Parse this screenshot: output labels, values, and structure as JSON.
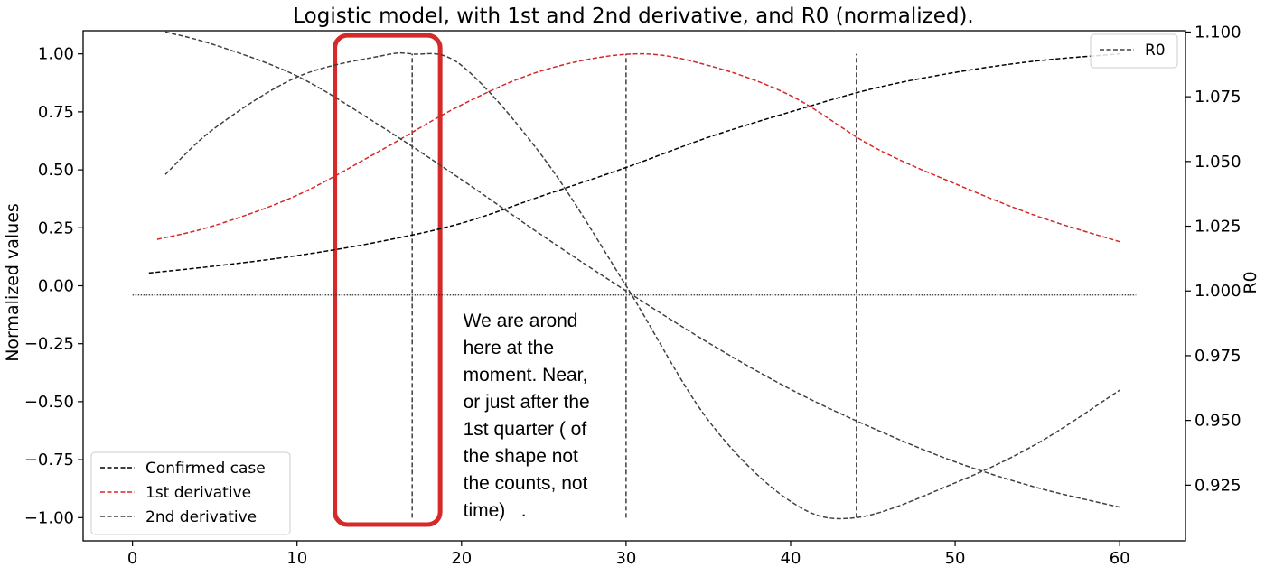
{
  "chart_data": {
    "type": "line",
    "title": "Logistic model, with 1st and 2nd derivative, and R0 (normalized).",
    "xlabel": "",
    "ylabel": "Normalized values",
    "y2label": "R0",
    "xlim": [
      -3,
      64
    ],
    "ylim": [
      -1.1,
      1.1
    ],
    "y2lim": [
      0.9035,
      1.1005
    ],
    "xticks": [
      "0",
      "10",
      "20",
      "30",
      "40",
      "50",
      "60"
    ],
    "yticks": [
      "1.00",
      "0.75",
      "0.50",
      "0.25",
      "0.00",
      "−0.25",
      "−0.50",
      "−0.75",
      "−1.00"
    ],
    "y2ticks": [
      "1.100",
      "1.075",
      "1.050",
      "1.025",
      "1.000",
      "0.975",
      "0.950",
      "0.925"
    ],
    "grid": false,
    "legend_left": {
      "placement": "lower-left",
      "entries": [
        {
          "label": "Confirmed case",
          "color": "#000000"
        },
        {
          "label": "1st derivative",
          "color": "#d62728"
        },
        {
          "label": "2nd derivative",
          "color": "#404040"
        }
      ]
    },
    "legend_right": {
      "placement": "upper-right",
      "entries": [
        {
          "label": "R0",
          "color": "#404040"
        }
      ]
    },
    "series": [
      {
        "key": "confirmed",
        "color": "#000000",
        "axis": "left",
        "x": [
          1,
          5,
          10,
          15,
          20,
          25,
          30,
          35,
          40,
          45,
          50,
          55,
          60
        ],
        "y": [
          0.055,
          0.085,
          0.13,
          0.19,
          0.27,
          0.39,
          0.51,
          0.64,
          0.75,
          0.85,
          0.92,
          0.97,
          1.0
        ]
      },
      {
        "key": "d1",
        "color": "#d62728",
        "axis": "left",
        "x": [
          1.5,
          5,
          10,
          15,
          20,
          25,
          30.5,
          35,
          40,
          45,
          50,
          55,
          60
        ],
        "y": [
          0.2,
          0.26,
          0.39,
          0.58,
          0.78,
          0.93,
          1.0,
          0.95,
          0.82,
          0.6,
          0.44,
          0.3,
          0.19
        ]
      },
      {
        "key": "d2",
        "color": "#404040",
        "axis": "left",
        "x": [
          2,
          5,
          10,
          15,
          17,
          20,
          25,
          30,
          35,
          40,
          44,
          50,
          55,
          60
        ],
        "y": [
          0.48,
          0.68,
          0.9,
          0.99,
          1.0,
          0.95,
          0.55,
          0.0,
          -0.58,
          -0.93,
          -1.0,
          -0.85,
          -0.68,
          -0.45
        ]
      },
      {
        "key": "r0",
        "color": "#404040",
        "axis": "right",
        "x": [
          2,
          5,
          10,
          15,
          20,
          25,
          30,
          35,
          40,
          45,
          50,
          55,
          60
        ],
        "y": [
          1.1,
          1.095,
          1.083,
          1.064,
          1.043,
          1.021,
          1.0,
          0.98,
          0.962,
          0.947,
          0.934,
          0.924,
          0.9165
        ]
      }
    ],
    "vlines": [
      {
        "x": 17,
        "ymin": -1.0,
        "ymax": 1.0
      },
      {
        "x": 30,
        "ymin": -1.0,
        "ymax": 1.0
      },
      {
        "x": 44,
        "ymin": -1.0,
        "ymax": 1.0
      }
    ],
    "hline": {
      "y": -0.04,
      "xmin": 0,
      "xmax": 61
    },
    "highlight": {
      "x0": 12.3,
      "x1": 18.7,
      "y0": -1.03,
      "y1": 1.08,
      "color": "#d42a2a"
    },
    "annotation": {
      "x": 20.1,
      "lines": [
        "We are arond",
        "here at the",
        "moment. Near,",
        "or just after the",
        "1st quarter ( of",
        "the shape not",
        "the counts, not",
        "time)   ."
      ]
    }
  }
}
